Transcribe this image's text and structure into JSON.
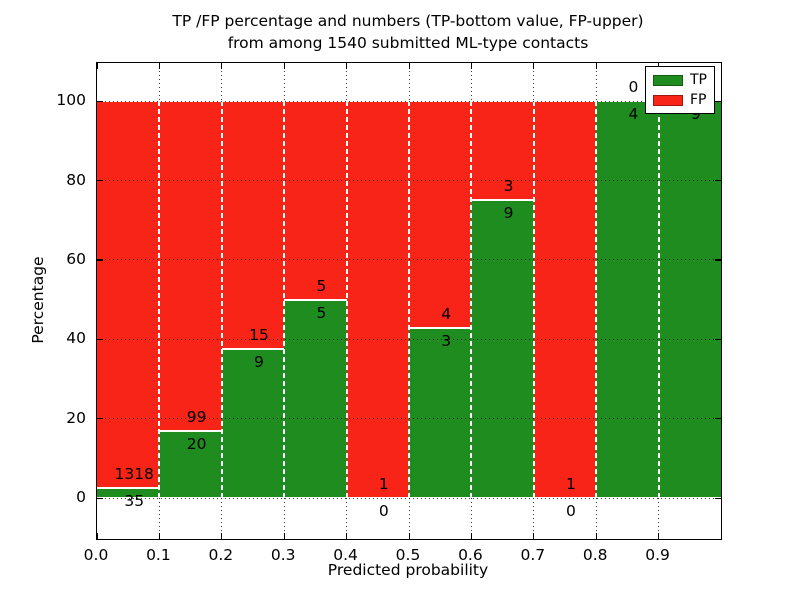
{
  "title": {
    "line1": "TP /FP percentage and numbers (TP-bottom value, FP-upper)",
    "line2": "from among 1540 submitted ML-type contacts"
  },
  "axes": {
    "xlabel": "Predicted probability",
    "ylabel": "Percentage",
    "x_tick_labels": [
      "0.0",
      "0.1",
      "0.2",
      "0.3",
      "0.4",
      "0.5",
      "0.6",
      "0.7",
      "0.8",
      "0.9"
    ],
    "y_ticks": [
      0,
      20,
      40,
      60,
      80,
      100
    ],
    "xlim": [
      0.0,
      1.0
    ],
    "ylim": [
      -10.3,
      109.6
    ]
  },
  "legend": {
    "position": "upper right",
    "items": [
      {
        "label": "TP",
        "color": "#1e8c1e"
      },
      {
        "label": "FP",
        "color": "#f82418"
      }
    ]
  },
  "colors": {
    "tp": "#1e8c1e",
    "fp": "#f82418",
    "grid": "#0a0a0a",
    "background": "#ffffff"
  },
  "chart_data": {
    "type": "bar",
    "stacking": "percent",
    "title": "TP /FP percentage and numbers (TP-bottom value, FP-upper) from among 1540 submitted ML-type contacts",
    "xlabel": "Predicted probability",
    "ylabel": "Percentage",
    "total_contacts": 1540,
    "bin_width": 0.1,
    "categories": [
      "0.0-0.1",
      "0.1-0.2",
      "0.2-0.3",
      "0.3-0.4",
      "0.4-0.5",
      "0.5-0.6",
      "0.6-0.7",
      "0.7-0.8",
      "0.8-0.9",
      "0.9-1.0"
    ],
    "series": [
      {
        "name": "TP",
        "color": "#1e8c1e",
        "values": [
          35,
          20,
          9,
          5,
          0,
          3,
          9,
          0,
          4,
          9
        ]
      },
      {
        "name": "FP",
        "color": "#f82418",
        "values": [
          1318,
          99,
          15,
          5,
          1,
          4,
          3,
          1,
          0,
          0
        ]
      }
    ],
    "tp_percent_of_bin": [
      2.6,
      16.8,
      37.5,
      50.0,
      0.0,
      42.9,
      75.0,
      0.0,
      100.0,
      100.0
    ],
    "annotation_scheme": "TP count below segment boundary, FP count above segment boundary",
    "xlim": [
      0.0,
      1.0
    ],
    "ylim": [
      -10.3,
      109.6
    ],
    "grid": true,
    "legend_position": "upper right"
  }
}
